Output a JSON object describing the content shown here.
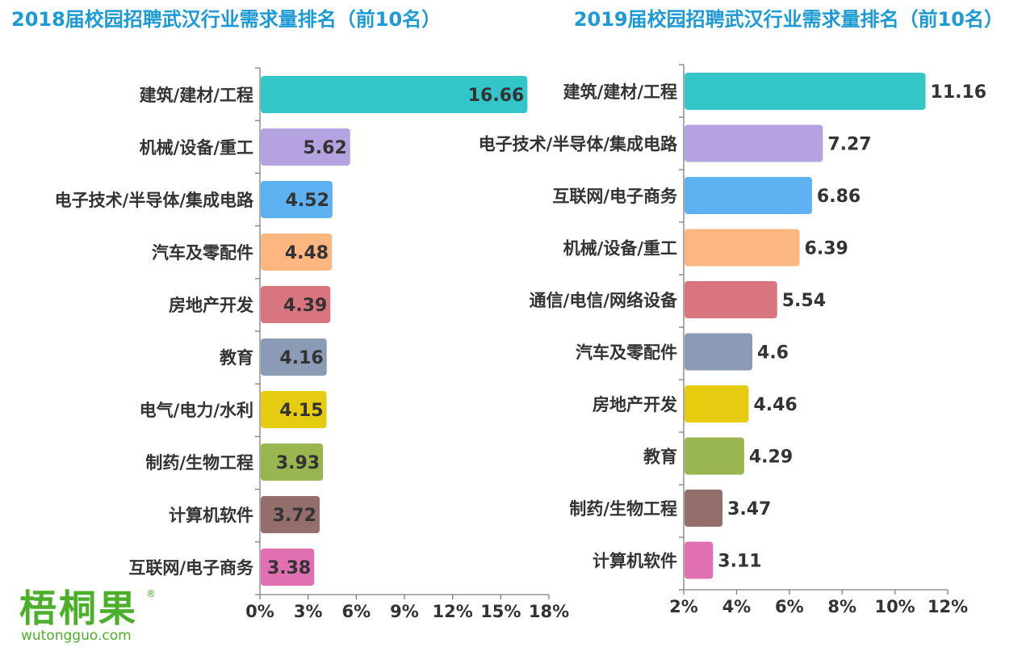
{
  "logo": {
    "name": "梧桐果",
    "url": "wutongguo.com",
    "reg": "®"
  },
  "chart_data": [
    {
      "type": "bar",
      "orientation": "horizontal",
      "title": "2018届校园招聘武汉行业需求量排名（前10名）",
      "categories": [
        "建筑/建材/工程",
        "机械/设备/重工",
        "电子技术/半导体/集成电路",
        "汽车及零配件",
        "房地产开发",
        "教育",
        "电气/电力/水利",
        "制药/生物工程",
        "计算机软件",
        "互联网/电子商务"
      ],
      "values": [
        16.66,
        5.62,
        4.52,
        4.48,
        4.39,
        4.16,
        4.15,
        3.93,
        3.72,
        3.38
      ],
      "value_labels": [
        "16.66",
        "5.62",
        "4.52",
        "4.48",
        "4.39",
        "4.16",
        "4.15",
        "3.93",
        "3.72",
        "3.38"
      ],
      "colors": [
        "#33c6c9",
        "#b5a2e0",
        "#5eb1f0",
        "#fdb680",
        "#d9757e",
        "#8b9ab5",
        "#e6cc11",
        "#99b550",
        "#946e6b",
        "#e070b1"
      ],
      "xlim": [
        0,
        18
      ],
      "xticks": [
        0,
        3,
        6,
        9,
        12,
        15,
        18
      ],
      "xtick_labels": [
        "0%",
        "3%",
        "6%",
        "9%",
        "12%",
        "15%",
        "18%"
      ],
      "label_position": "inside-end",
      "grid": false
    },
    {
      "type": "bar",
      "orientation": "horizontal",
      "title": "2019届校园招聘武汉行业需求量排名（前10名）",
      "categories": [
        "建筑/建材/工程",
        "电子技术/半导体/集成电路",
        "互联网/电子商务",
        "机械/设备/重工",
        "通信/电信/网络设备",
        "汽车及零配件",
        "房地产开发",
        "教育",
        "制药/生物工程",
        "计算机软件"
      ],
      "values": [
        11.16,
        7.27,
        6.86,
        6.39,
        5.54,
        4.6,
        4.46,
        4.29,
        3.47,
        3.11
      ],
      "value_labels": [
        "11.16",
        "7.27",
        "6.86",
        "6.39",
        "5.54",
        "4.6",
        "4.46",
        "4.29",
        "3.47",
        "3.11"
      ],
      "colors": [
        "#33c6c9",
        "#b5a2e0",
        "#5eb1f0",
        "#fdb680",
        "#d9757e",
        "#8b9ab5",
        "#e6cc11",
        "#99b550",
        "#946e6b",
        "#e070b1"
      ],
      "xlim": [
        2,
        12
      ],
      "xticks": [
        2,
        4,
        6,
        8,
        10,
        12
      ],
      "xtick_labels": [
        "2%",
        "4%",
        "6%",
        "8%",
        "10%",
        "12%"
      ],
      "label_position": "outside-end",
      "grid": false
    }
  ]
}
